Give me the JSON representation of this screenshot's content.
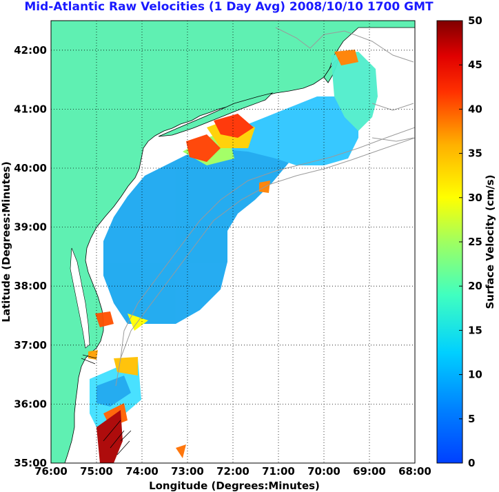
{
  "title": "Mid-Atlantic Raw Velocities (1 Day Avg) 2008/10/10 1700 GMT",
  "xlabel": "Longitude (Degrees:Minutes)",
  "ylabel": "Latitude (Degrees:Minutes)",
  "colorbar_label": "Surface Velocity (cm/s)",
  "x_ticks": [
    "76:00",
    "75:00",
    "74:00",
    "73:00",
    "72:00",
    "71:00",
    "70:00",
    "69:00",
    "68:00"
  ],
  "y_ticks": [
    "42:00",
    "41:00",
    "40:00",
    "39:00",
    "38:00",
    "37:00",
    "36:00",
    "35:00"
  ],
  "colorbar_ticks": [
    "50",
    "45",
    "40",
    "35",
    "30",
    "25",
    "20",
    "15",
    "10",
    "5",
    "0"
  ],
  "colors": {
    "land": "#5ff0b2",
    "title": "#1a1aff",
    "grid": "#000000"
  },
  "map": {
    "lon_range": [
      -76,
      -68
    ],
    "lat_range": [
      35,
      42.5
    ],
    "velocity_range_cm_s": [
      0,
      50
    ],
    "grid": "dotted"
  }
}
